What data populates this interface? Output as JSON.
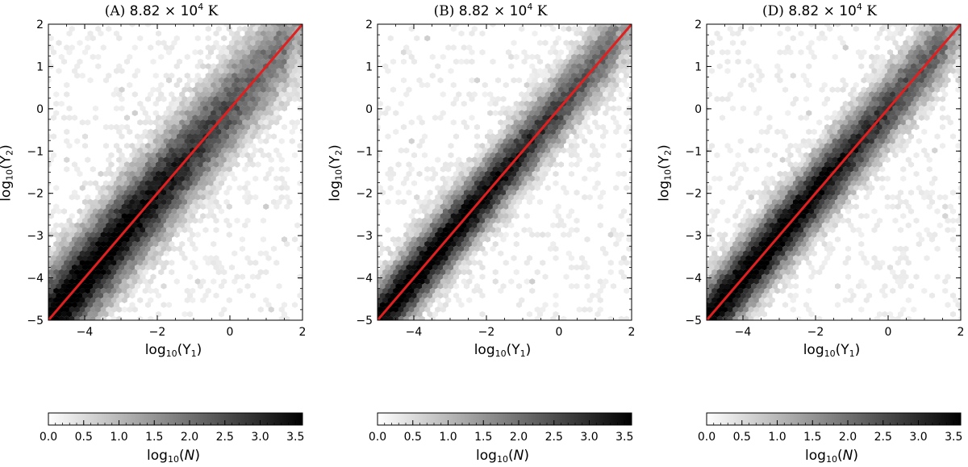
{
  "colors": {
    "fit_line": "#e02020",
    "cmap_low": "#ffffff",
    "cmap_high": "#000000"
  },
  "chart_data": [
    {
      "type": "heatmap",
      "title": {
        "prefix": "(A)",
        "mantissa": "8.82",
        "times": "×",
        "base": "10",
        "exponent": "4",
        "unit": "K"
      },
      "xlabel": {
        "func": "log",
        "func_sub": "10",
        "open": "(Y",
        "var_sub": "1",
        "close": ")"
      },
      "ylabel": {
        "func": "log",
        "func_sub": "10",
        "open": "(Y",
        "var_sub": "2",
        "close": ")"
      },
      "xlim": [
        -5,
        2
      ],
      "ylim": [
        -5,
        2
      ],
      "xticks": [
        "−4",
        "−2",
        "0",
        "2"
      ],
      "xtick_values": [
        -4,
        -2,
        0,
        2
      ],
      "yticks": [
        "−5",
        "−4",
        "−3",
        "−2",
        "−1",
        "0",
        "1",
        "2"
      ],
      "ytick_values": [
        -5,
        -4,
        -3,
        -2,
        -1,
        0,
        1,
        2
      ],
      "fit_line": {
        "x": [
          -5,
          2
        ],
        "y": [
          -5,
          2
        ]
      },
      "density": {
        "peak_x": -4.2,
        "slope": 1.0,
        "spread": 0.55,
        "seed": 11
      },
      "colorbar": {
        "label_func": "log",
        "label_sub": "10",
        "label_var": "N",
        "ticks": [
          "0.0",
          "0.5",
          "1.0",
          "1.5",
          "2.0",
          "2.5",
          "3.0",
          "3.5"
        ],
        "tick_values": [
          0,
          0.5,
          1.0,
          1.5,
          2.0,
          2.5,
          3.0,
          3.5
        ],
        "range": [
          0,
          3.6
        ]
      }
    },
    {
      "type": "heatmap",
      "title": {
        "prefix": "(B)",
        "mantissa": "8.82",
        "times": "×",
        "base": "10",
        "exponent": "4",
        "unit": "K"
      },
      "xlabel": {
        "func": "log",
        "func_sub": "10",
        "open": "(Y",
        "var_sub": "1",
        "close": ")"
      },
      "ylabel": {
        "func": "log",
        "func_sub": "10",
        "open": "(Y",
        "var_sub": "2",
        "close": ")"
      },
      "xlim": [
        -5,
        2
      ],
      "ylim": [
        -5,
        2
      ],
      "xticks": [
        "−4",
        "−2",
        "0",
        "2"
      ],
      "xtick_values": [
        -4,
        -2,
        0,
        2
      ],
      "yticks": [
        "−5",
        "−4",
        "−3",
        "−2",
        "−1",
        "0",
        "1",
        "2"
      ],
      "ytick_values": [
        -5,
        -4,
        -3,
        -2,
        -1,
        0,
        1,
        2
      ],
      "fit_line": {
        "x": [
          -5,
          2
        ],
        "y": [
          -5,
          2
        ]
      },
      "density": {
        "peak_x": -3.8,
        "slope": 1.0,
        "spread": 0.4,
        "seed": 23
      },
      "colorbar": {
        "label_func": "log",
        "label_sub": "10",
        "label_var": "N",
        "ticks": [
          "0.0",
          "0.5",
          "1.0",
          "1.5",
          "2.0",
          "2.5",
          "3.0",
          "3.5"
        ],
        "tick_values": [
          0,
          0.5,
          1.0,
          1.5,
          2.0,
          2.5,
          3.0,
          3.5
        ],
        "range": [
          0,
          3.6
        ]
      }
    },
    {
      "type": "heatmap",
      "title": {
        "prefix": "(D)",
        "mantissa": "8.82",
        "times": "×",
        "base": "10",
        "exponent": "4",
        "unit": "K"
      },
      "xlabel": {
        "func": "log",
        "func_sub": "10",
        "open": "(Y",
        "var_sub": "1",
        "close": ")"
      },
      "ylabel": {
        "func": "log",
        "func_sub": "10",
        "open": "(Y",
        "var_sub": "2",
        "close": ")"
      },
      "xlim": [
        -5,
        2
      ],
      "ylim": [
        -5,
        2
      ],
      "xticks": [
        "−4",
        "−2",
        "0",
        "2"
      ],
      "xtick_values": [
        -4,
        -2,
        0,
        2
      ],
      "yticks": [
        "−5",
        "−4",
        "−3",
        "−2",
        "−1",
        "0",
        "1",
        "2"
      ],
      "ytick_values": [
        -5,
        -4,
        -3,
        -2,
        -1,
        0,
        1,
        2
      ],
      "fit_line": {
        "x": [
          -5,
          2
        ],
        "y": [
          -5,
          2
        ]
      },
      "density": {
        "peak_x": -3.6,
        "slope": 1.0,
        "spread": 0.42,
        "seed": 37
      },
      "colorbar": {
        "label_func": "log",
        "label_sub": "10",
        "label_var": "N",
        "ticks": [
          "0.0",
          "0.5",
          "1.0",
          "1.5",
          "2.0",
          "2.5",
          "3.0",
          "3.5"
        ],
        "tick_values": [
          0,
          0.5,
          1.0,
          1.5,
          2.0,
          2.5,
          3.0,
          3.5
        ],
        "range": [
          0,
          3.6
        ]
      }
    }
  ]
}
